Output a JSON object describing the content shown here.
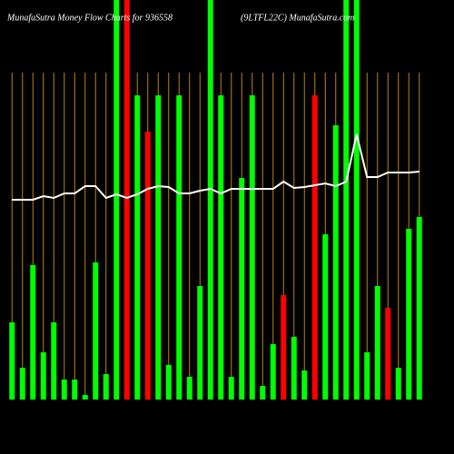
{
  "chart_data": {
    "type": "bar",
    "title": "MunafaSutra  Money Flow  Charts for 936558",
    "subtitle": "(9LTFL22C) MunafaSutra.com",
    "categories": [
      null,
      null,
      null,
      null,
      null,
      null,
      null,
      null,
      null,
      null,
      null,
      null,
      null,
      null,
      null,
      null,
      null,
      null,
      null,
      null,
      null,
      null,
      null,
      null,
      null,
      null,
      null,
      null,
      null,
      null,
      null,
      null,
      null,
      null,
      null,
      null,
      null,
      null,
      null,
      null
    ],
    "values": [
      85,
      35,
      148,
      52,
      85,
      22,
      22,
      5,
      151,
      28,
      440,
      440,
      335,
      295,
      335,
      38,
      335,
      25,
      125,
      440,
      335,
      25,
      244,
      335,
      15,
      61,
      115,
      69,
      32,
      335,
      182,
      302,
      440,
      440,
      52,
      125,
      101,
      35,
      188,
      201
    ],
    "colors": [
      "#00ff00",
      "#00ff00",
      "#00ff00",
      "#00ff00",
      "#00ff00",
      "#00ff00",
      "#00ff00",
      "#00ff00",
      "#00ff00",
      "#00ff00",
      "#00ff00",
      "#ff0000",
      "#00ff00",
      "#ff0000",
      "#00ff00",
      "#00ff00",
      "#00ff00",
      "#00ff00",
      "#00ff00",
      "#00ff00",
      "#00ff00",
      "#00ff00",
      "#00ff00",
      "#00ff00",
      "#00ff00",
      "#00ff00",
      "#ff0000",
      "#00ff00",
      "#00ff00",
      "#ff0000",
      "#00ff00",
      "#00ff00",
      "#00ff00",
      "#00ff00",
      "#00ff00",
      "#00ff00",
      "#ff0000",
      "#00ff00",
      "#00ff00",
      "#00ff00"
    ],
    "line": {
      "color": "#ffffff",
      "values": [
        220,
        220,
        220,
        224,
        222,
        227,
        227,
        235,
        235,
        222,
        226,
        222,
        226,
        232,
        235,
        234,
        227,
        227,
        230,
        232,
        227,
        232,
        232,
        232,
        232,
        232,
        240,
        233,
        234,
        236,
        238,
        235,
        240,
        292,
        245,
        245,
        250,
        250,
        250,
        251
      ]
    },
    "ylim": [
      0,
      440
    ],
    "grid": true,
    "grid_color": "#b8860b"
  }
}
